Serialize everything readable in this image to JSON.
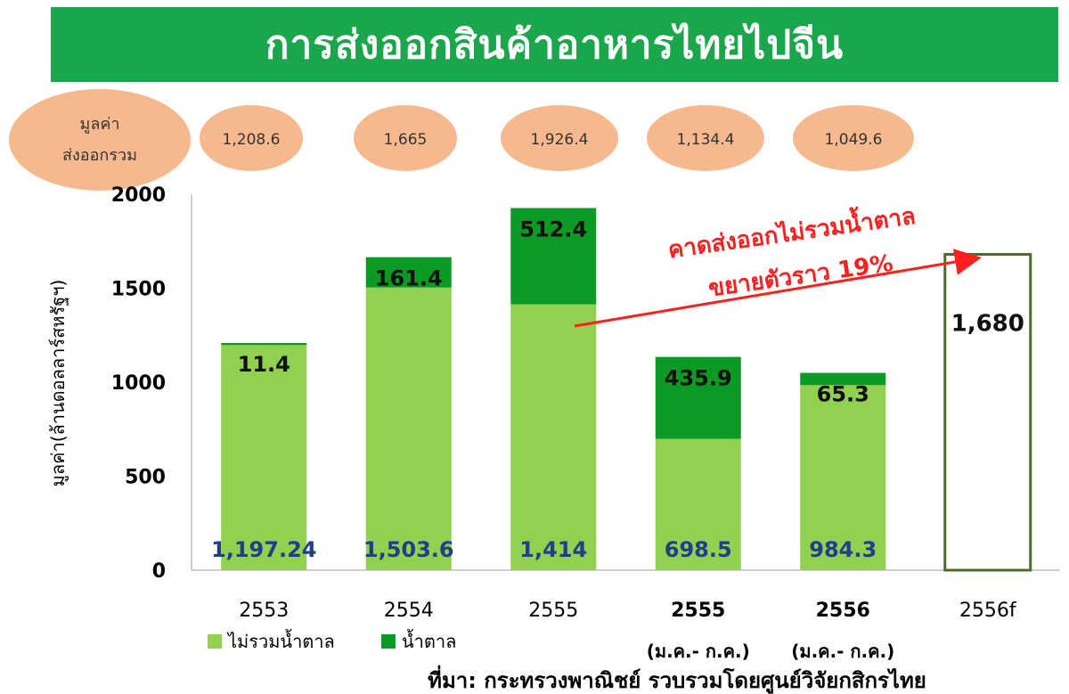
{
  "title": "การส่งออกสินค้าอาหารไทยไปจีน",
  "source": "ที่มา: กระทรวงพาณิชย์ รวบรวมโดยศูนย์วิจัยกสิกรไทย",
  "colors": {
    "banner": "#1aa64b",
    "non_sugar": "#92d050",
    "sugar": "#0b9a24",
    "forecast_outline": "#4e6b2a",
    "ellipse": "#f6b98d",
    "annotation": "#ff1f1f",
    "bottom_label": "#1f3f8a"
  },
  "chart_data": {
    "type": "bar",
    "stacked": true,
    "ylabel": "มูลค่า(ล้านดอลลาร์สหรัฐฯ)",
    "ylim": [
      0,
      2000
    ],
    "yticks": [
      0,
      500,
      1000,
      1500,
      2000
    ],
    "categories": [
      {
        "label": "2553",
        "sublabel": ""
      },
      {
        "label": "2554",
        "sublabel": ""
      },
      {
        "label": "2555",
        "sublabel": ""
      },
      {
        "label": "2555",
        "sublabel": "(ม.ค.- ก.ค.)"
      },
      {
        "label": "2556",
        "sublabel": "(ม.ค.- ก.ค.)"
      },
      {
        "label": "2556f",
        "sublabel": ""
      }
    ],
    "series": [
      {
        "name": "ไม่รวมน้ำตาล",
        "values": [
          1197.24,
          1503.6,
          1414,
          698.5,
          984.3,
          null
        ],
        "labels": [
          "1,197.24",
          "1,503.6",
          "1,414",
          "698.5",
          "984.3",
          ""
        ]
      },
      {
        "name": "น้ำตาล",
        "values": [
          11.4,
          161.4,
          512.4,
          435.9,
          65.3,
          null
        ],
        "labels": [
          "11.4",
          "161.4",
          "512.4",
          "435.9",
          "65.3",
          ""
        ]
      }
    ],
    "forecast": {
      "index": 5,
      "value": 1680,
      "label": "1,680"
    },
    "totals": {
      "header": [
        "มูลค่า",
        "ส่งออกรวม"
      ],
      "values": [
        "1,208.6",
        "1,665",
        "1,926.4",
        "1,134.4",
        "1,049.6"
      ]
    },
    "annotation": {
      "lines": [
        "คาดส่งออกไม่รวมน้ำตาล",
        "ขยายตัวราว 19%"
      ]
    },
    "legend_position": "bottom-left",
    "grid": false
  }
}
